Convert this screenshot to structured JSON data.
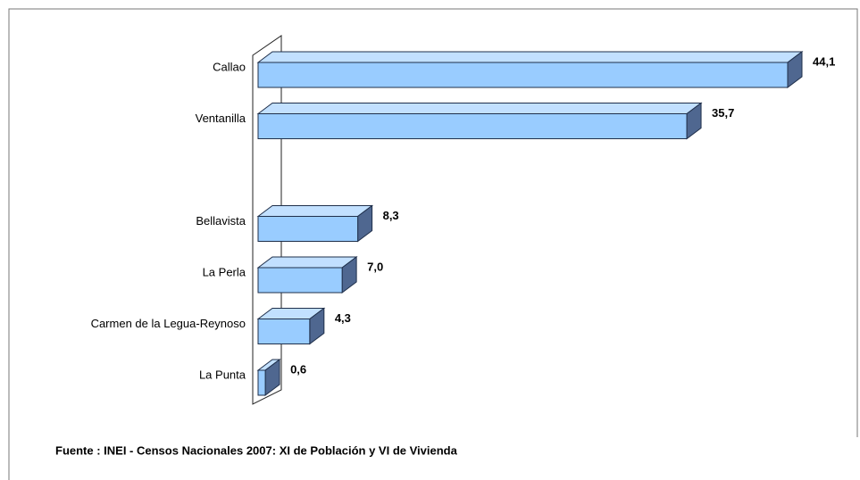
{
  "chart_data": {
    "type": "bar3d_horizontal",
    "categories": [
      "Callao",
      "Ventanilla",
      null,
      "Bellavista",
      "La Perla",
      "Carmen de la Legua-Reynoso",
      "La Punta"
    ],
    "values": [
      44.1,
      35.7,
      null,
      8.3,
      7.0,
      4.3,
      0.6
    ],
    "value_labels": [
      "44,1",
      "35,7",
      null,
      "8,3",
      "7,0",
      "4,3",
      "0,6"
    ],
    "color": "#99ccff",
    "side_color": "#4f6790",
    "top_color": "#c2e0ff",
    "source": "Fuente : INEI - Censos Nacionales 2007: XI de Población y VI de Vivienda"
  }
}
